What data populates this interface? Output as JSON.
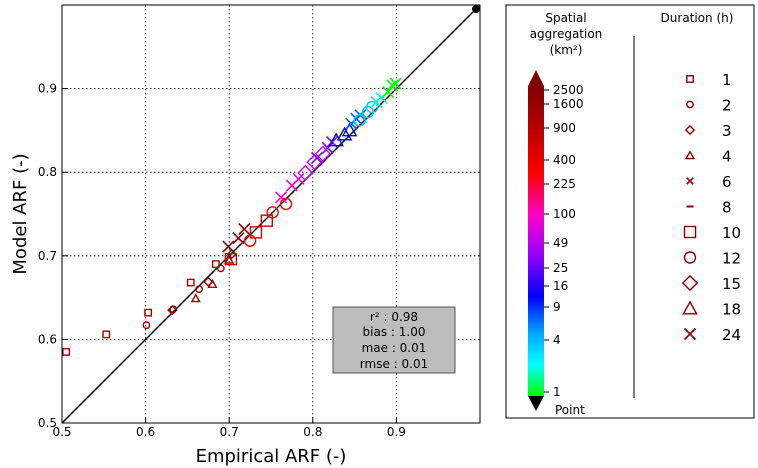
{
  "chart_data": {
    "type": "scatter",
    "xlabel": "Empirical ARF (-)",
    "ylabel": "Model ARF (-)",
    "xlim": [
      0.5,
      1.0
    ],
    "ylim": [
      0.5,
      1.0
    ],
    "xticks": [
      0.5,
      0.6,
      0.7,
      0.8,
      0.9
    ],
    "yticks": [
      0.5,
      0.6,
      0.7,
      0.8,
      0.9
    ],
    "grid": true,
    "one_to_one_line": true,
    "stats_box": {
      "r2": "r² : 0.98",
      "bias": "bias : 1.00",
      "mae": "mae : 0.01",
      "rmse": "rmse : 0.01"
    },
    "colorbar": {
      "title": [
        "Spatial",
        "aggregation",
        "(km²)"
      ],
      "ticks": [
        "2500",
        "1600",
        "900",
        "400",
        "225",
        "100",
        "49",
        "25",
        "16",
        "9",
        "4",
        "1",
        "Point"
      ],
      "colors": [
        "#ff00ff",
        "#8000ff",
        "#0000ff",
        "#00ffff",
        "#00ff00"
      ],
      "warm_colors": [
        "#800000",
        "#ff0000",
        "#ff00ff"
      ]
    },
    "duration_legend": {
      "title": "Duration (h)",
      "entries": [
        {
          "label": "1",
          "marker": "square-small"
        },
        {
          "label": "2",
          "marker": "circle-small"
        },
        {
          "label": "3",
          "marker": "diamond-small"
        },
        {
          "label": "4",
          "marker": "triangle-small"
        },
        {
          "label": "6",
          "marker": "x-small"
        },
        {
          "label": "8",
          "marker": "dash"
        },
        {
          "label": "10",
          "marker": "square"
        },
        {
          "label": "12",
          "marker": "circle"
        },
        {
          "label": "15",
          "marker": "diamond"
        },
        {
          "label": "18",
          "marker": "triangle"
        },
        {
          "label": "24",
          "marker": "x"
        }
      ]
    },
    "series": [
      {
        "marker": "square-small",
        "color": "#aa0000",
        "points": [
          [
            0.505,
            0.585
          ],
          [
            0.553,
            0.606
          ],
          [
            0.603,
            0.632
          ],
          [
            0.654,
            0.668
          ],
          [
            0.684,
            0.69
          ]
        ]
      },
      {
        "marker": "circle-small",
        "color": "#aa0000",
        "points": [
          [
            0.601,
            0.617
          ],
          [
            0.633,
            0.636
          ],
          [
            0.664,
            0.66
          ],
          [
            0.69,
            0.685
          ]
        ]
      },
      {
        "marker": "diamond-small",
        "color": "#8b0000",
        "points": [
          [
            0.632,
            0.635
          ],
          [
            0.675,
            0.669
          ],
          [
            0.703,
            0.702
          ]
        ]
      },
      {
        "marker": "triangle-small",
        "color": "#aa0000",
        "points": [
          [
            0.66,
            0.649
          ],
          [
            0.68,
            0.666
          ],
          [
            0.7,
            0.695
          ]
        ]
      },
      {
        "marker": "x",
        "color": "#8b0000",
        "points": [
          [
            0.699,
            0.711
          ],
          [
            0.711,
            0.721
          ],
          [
            0.718,
            0.732
          ]
        ]
      },
      {
        "marker": "square",
        "color": "#cc0000",
        "points": [
          [
            0.702,
            0.696
          ],
          [
            0.732,
            0.728
          ],
          [
            0.745,
            0.742
          ]
        ]
      },
      {
        "marker": "circle",
        "color": "#ff0000",
        "points": [
          [
            0.725,
            0.718
          ],
          [
            0.752,
            0.752
          ],
          [
            0.768,
            0.762
          ]
        ]
      },
      {
        "marker": "x",
        "color": "#ff00cc",
        "points": [
          [
            0.762,
            0.77
          ],
          [
            0.775,
            0.784
          ],
          [
            0.783,
            0.792
          ]
        ]
      },
      {
        "marker": "diamond",
        "color": "#dd00ff",
        "points": [
          [
            0.791,
            0.799
          ],
          [
            0.802,
            0.812
          ],
          [
            0.812,
            0.822
          ]
        ]
      },
      {
        "marker": "x",
        "color": "#8000ff",
        "points": [
          [
            0.805,
            0.817
          ],
          [
            0.818,
            0.829
          ],
          [
            0.823,
            0.836
          ]
        ]
      },
      {
        "marker": "triangle",
        "color": "#0000ff",
        "points": [
          [
            0.828,
            0.838
          ],
          [
            0.838,
            0.845
          ],
          [
            0.844,
            0.85
          ]
        ]
      },
      {
        "marker": "x",
        "color": "#0060ff",
        "points": [
          [
            0.846,
            0.858
          ],
          [
            0.852,
            0.864
          ],
          [
            0.857,
            0.868
          ]
        ]
      },
      {
        "marker": "circle",
        "color": "#00ccff",
        "points": [
          [
            0.856,
            0.862
          ],
          [
            0.866,
            0.872
          ],
          [
            0.871,
            0.878
          ]
        ]
      },
      {
        "marker": "x",
        "color": "#00ffcc",
        "points": [
          [
            0.876,
            0.884
          ],
          [
            0.882,
            0.889
          ]
        ]
      },
      {
        "marker": "x",
        "color": "#00ff00",
        "points": [
          [
            0.89,
            0.896
          ],
          [
            0.895,
            0.904
          ],
          [
            0.899,
            0.906
          ]
        ]
      }
    ]
  }
}
